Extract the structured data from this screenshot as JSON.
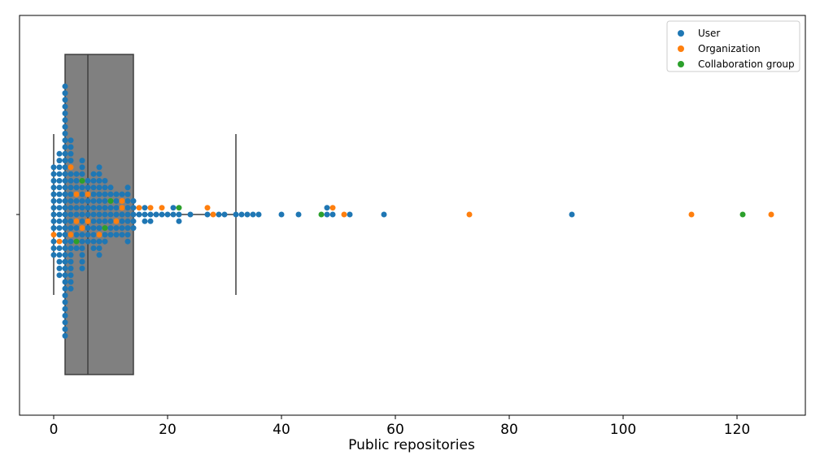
{
  "chart_data": {
    "type": "swarm-box",
    "title": "",
    "xlabel": "Public repositories",
    "ylabel": "",
    "xlim": [
      -6,
      132
    ],
    "xticks": [
      0,
      20,
      40,
      60,
      80,
      100,
      120
    ],
    "grid": false,
    "legend_placement": "top-right",
    "box": {
      "q1": 2,
      "median": 6,
      "q3": 14,
      "whisker_low": 0,
      "whisker_high": 32,
      "color": "#808080"
    },
    "series": [
      {
        "name": "User",
        "color": "#1f77b4",
        "values": [
          0,
          0,
          0,
          0,
          0,
          0,
          0,
          0,
          0,
          0,
          0,
          0,
          0,
          1,
          1,
          1,
          1,
          1,
          1,
          1,
          1,
          1,
          1,
          1,
          1,
          1,
          1,
          1,
          1,
          1,
          1,
          2,
          2,
          2,
          2,
          2,
          2,
          2,
          2,
          2,
          2,
          2,
          2,
          2,
          2,
          2,
          2,
          2,
          2,
          2,
          2,
          2,
          2,
          2,
          2,
          2,
          2,
          2,
          2,
          2,
          2,
          2,
          2,
          2,
          2,
          2,
          2,
          2,
          2,
          3,
          3,
          3,
          3,
          3,
          3,
          3,
          3,
          3,
          3,
          3,
          3,
          3,
          3,
          3,
          3,
          3,
          3,
          3,
          3,
          3,
          4,
          4,
          4,
          4,
          4,
          4,
          4,
          4,
          4,
          5,
          5,
          5,
          5,
          5,
          5,
          5,
          5,
          5,
          5,
          5,
          5,
          5,
          5,
          5,
          6,
          6,
          6,
          6,
          6,
          6,
          6,
          6,
          7,
          7,
          7,
          7,
          7,
          7,
          7,
          7,
          7,
          7,
          7,
          7,
          8,
          8,
          8,
          8,
          8,
          8,
          8,
          8,
          8,
          8,
          8,
          8,
          8,
          9,
          9,
          9,
          9,
          9,
          9,
          9,
          9,
          9,
          10,
          10,
          10,
          10,
          10,
          10,
          10,
          11,
          11,
          11,
          11,
          11,
          11,
          12,
          12,
          12,
          12,
          12,
          13,
          13,
          13,
          13,
          13,
          13,
          13,
          13,
          13,
          14,
          14,
          14,
          14,
          14,
          15,
          16,
          16,
          16,
          17,
          17,
          18,
          19,
          20,
          21,
          21,
          22,
          22,
          24,
          27,
          29,
          30,
          32,
          33,
          34,
          35,
          36,
          40,
          43,
          48,
          48,
          49,
          52,
          58,
          91
        ]
      },
      {
        "name": "Organization",
        "color": "#ff7f0e",
        "values": [
          0,
          1,
          3,
          3,
          4,
          4,
          5,
          6,
          6,
          8,
          11,
          12,
          12,
          15,
          17,
          19,
          27,
          28,
          49,
          51,
          73,
          112,
          126
        ]
      },
      {
        "name": "Collaboration group",
        "color": "#2ca02c",
        "values": [
          4,
          5,
          9,
          10,
          22,
          47,
          121
        ]
      }
    ]
  }
}
